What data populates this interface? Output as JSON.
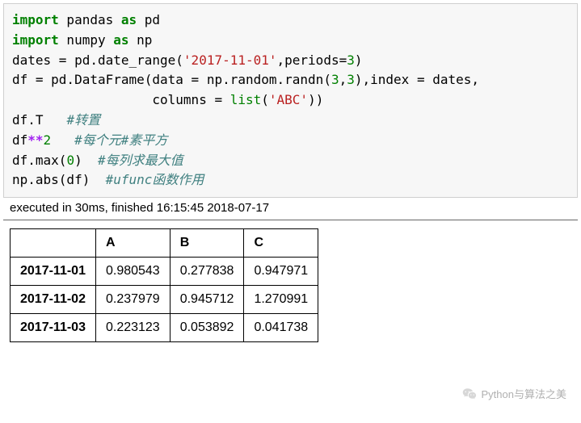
{
  "code": {
    "tokens": [
      [
        [
          "kw",
          "import"
        ],
        [
          "plain",
          " pandas "
        ],
        [
          "kw",
          "as"
        ],
        [
          "plain",
          " pd"
        ]
      ],
      [
        [
          "kw",
          "import"
        ],
        [
          "plain",
          " numpy "
        ],
        [
          "kw",
          "as"
        ],
        [
          "plain",
          " np"
        ]
      ],
      [
        [
          "plain",
          "dates = pd.date_range("
        ],
        [
          "str",
          "'2017-11-01'"
        ],
        [
          "plain",
          ",periods="
        ],
        [
          "num",
          "3"
        ],
        [
          "plain",
          ")"
        ]
      ],
      [
        [
          "plain",
          "df = pd.DataFrame(data = np.random.randn("
        ],
        [
          "num",
          "3"
        ],
        [
          "plain",
          ","
        ],
        [
          "num",
          "3"
        ],
        [
          "plain",
          "),index = dates,"
        ]
      ],
      [
        [
          "plain",
          "                  columns = "
        ],
        [
          "builtin",
          "list"
        ],
        [
          "plain",
          "("
        ],
        [
          "str",
          "'ABC'"
        ],
        [
          "plain",
          "))"
        ]
      ],
      [
        [
          "plain",
          "df.T   "
        ],
        [
          "comment",
          "#转置"
        ]
      ],
      [
        [
          "plain",
          "df"
        ],
        [
          "op",
          "**"
        ],
        [
          "num",
          "2"
        ],
        [
          "plain",
          "   "
        ],
        [
          "comment",
          "#每个元#素平方"
        ]
      ],
      [
        [
          "plain",
          "df.max("
        ],
        [
          "num",
          "0"
        ],
        [
          "plain",
          ")  "
        ],
        [
          "comment",
          "#每列求最大值"
        ]
      ],
      [
        [
          "plain",
          "np.abs(df)  "
        ],
        [
          "comment",
          "#ufunc函数作用"
        ]
      ]
    ]
  },
  "exec_status": "executed in 30ms, finished 16:15:45 2018-07-17",
  "table": {
    "columns": [
      "A",
      "B",
      "C"
    ],
    "index": [
      "2017-11-01",
      "2017-11-02",
      "2017-11-03"
    ],
    "data": [
      [
        "0.980543",
        "0.277838",
        "0.947971"
      ],
      [
        "0.237979",
        "0.945712",
        "1.270991"
      ],
      [
        "0.223123",
        "0.053892",
        "0.041738"
      ]
    ],
    "border_color": "#000000",
    "cell_fontsize": 16,
    "header_fontweight": "bold"
  },
  "watermark": {
    "text": "Python与算法之美",
    "color": "#b0b0b0"
  },
  "colors": {
    "code_bg": "#f7f7f7",
    "code_border": "#cfcfcf",
    "keyword": "#008000",
    "string": "#ba2121",
    "number": "#008000",
    "operator": "#a020f0",
    "comment": "#408080",
    "page_bg": "#ffffff"
  }
}
